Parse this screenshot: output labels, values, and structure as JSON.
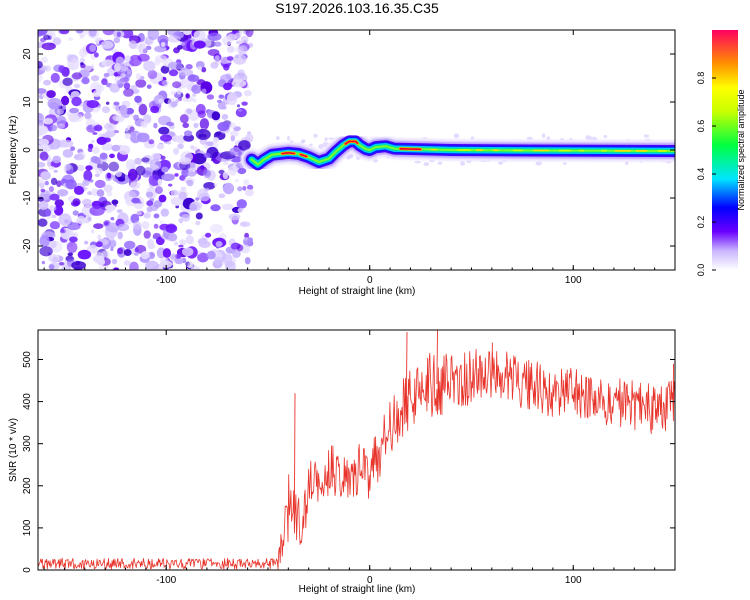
{
  "title": "S197.2026.103.16.35.C35",
  "chart_data": [
    {
      "type": "heatmap",
      "name": "spectrogram",
      "xlabel": "Height of straight line (km)",
      "ylabel": "Frequency (Hz)",
      "xlim": [
        -163,
        150
      ],
      "ylim": [
        -25,
        25
      ],
      "xticks": [
        -100,
        0,
        100
      ],
      "yticks": [
        -20,
        -10,
        0,
        10,
        20
      ],
      "noise_region_x": [
        -163,
        -58
      ],
      "signal_start_x": -58,
      "tone_track": [
        {
          "x": -58,
          "f": -2.0
        },
        {
          "x": -55,
          "f": -3.0
        },
        {
          "x": -52,
          "f": -2.0
        },
        {
          "x": -48,
          "f": -1.0
        },
        {
          "x": -44,
          "f": -0.8
        },
        {
          "x": -40,
          "f": -0.6
        },
        {
          "x": -35,
          "f": -0.8
        },
        {
          "x": -30,
          "f": -1.5
        },
        {
          "x": -25,
          "f": -2.5
        },
        {
          "x": -20,
          "f": -1.8
        },
        {
          "x": -17,
          "f": -0.5
        },
        {
          "x": -13,
          "f": 1.0
        },
        {
          "x": -10,
          "f": 1.8
        },
        {
          "x": -7,
          "f": 1.8
        },
        {
          "x": -5,
          "f": 1.0
        },
        {
          "x": -2,
          "f": 0.2
        },
        {
          "x": 0,
          "f": 0.0
        },
        {
          "x": 3,
          "f": 0.6
        },
        {
          "x": 8,
          "f": 0.8
        },
        {
          "x": 12,
          "f": 0.3
        },
        {
          "x": 20,
          "f": 0.2
        },
        {
          "x": 40,
          "f": 0.0
        },
        {
          "x": 80,
          "f": -0.1
        },
        {
          "x": 150,
          "f": -0.2
        }
      ],
      "peak_segments": [
        [
          -43,
          -37
        ],
        [
          -34,
          -31
        ],
        [
          -12,
          -6
        ],
        [
          15,
          25
        ]
      ]
    },
    {
      "type": "line",
      "name": "snr",
      "xlabel": "Height of straight line (km)",
      "ylabel": "SNR (10 * v/v)",
      "xlim": [
        -163,
        150
      ],
      "ylim": [
        0,
        570
      ],
      "xticks": [
        -100,
        0,
        100
      ],
      "yticks": [
        0,
        100,
        200,
        300,
        400,
        500
      ],
      "color": "#e8332a",
      "series": [
        {
          "name": "SNR",
          "x": [
            -163,
            -140,
            -120,
            -100,
            -80,
            -60,
            -45,
            -40,
            -36,
            -33,
            -30,
            -25,
            -20,
            -15,
            -10,
            -5,
            0,
            5,
            10,
            15,
            20,
            25,
            30,
            40,
            50,
            60,
            70,
            80,
            90,
            100,
            110,
            120,
            130,
            140,
            150
          ],
          "mean": [
            15,
            15,
            15,
            15,
            15,
            15,
            20,
            140,
            120,
            110,
            200,
            200,
            240,
            230,
            230,
            250,
            220,
            290,
            340,
            380,
            410,
            425,
            440,
            445,
            460,
            460,
            450,
            440,
            420,
            420,
            400,
            400,
            390,
            380,
            395
          ],
          "spread": [
            15,
            15,
            15,
            15,
            15,
            15,
            15,
            90,
            60,
            60,
            60,
            60,
            60,
            60,
            60,
            70,
            60,
            70,
            70,
            80,
            70,
            70,
            80,
            70,
            70,
            60,
            70,
            60,
            60,
            60,
            60,
            60,
            60,
            60,
            60
          ],
          "spikes": [
            {
              "x": -37,
              "y": 420
            },
            {
              "x": 18,
              "y": 565
            },
            {
              "x": 33,
              "y": 570
            },
            {
              "x": 60,
              "y": 540
            },
            {
              "x": 149,
              "y": 490
            }
          ]
        }
      ]
    }
  ],
  "colorbar": {
    "label": "Normalized spectral amplitude",
    "min": 0.0,
    "max": 1.0,
    "ticks": [
      "0.0",
      "0.2",
      "0.4",
      "0.6",
      "0.8"
    ],
    "tick_values": [
      0.0,
      0.2,
      0.4,
      0.6,
      0.8
    ]
  }
}
